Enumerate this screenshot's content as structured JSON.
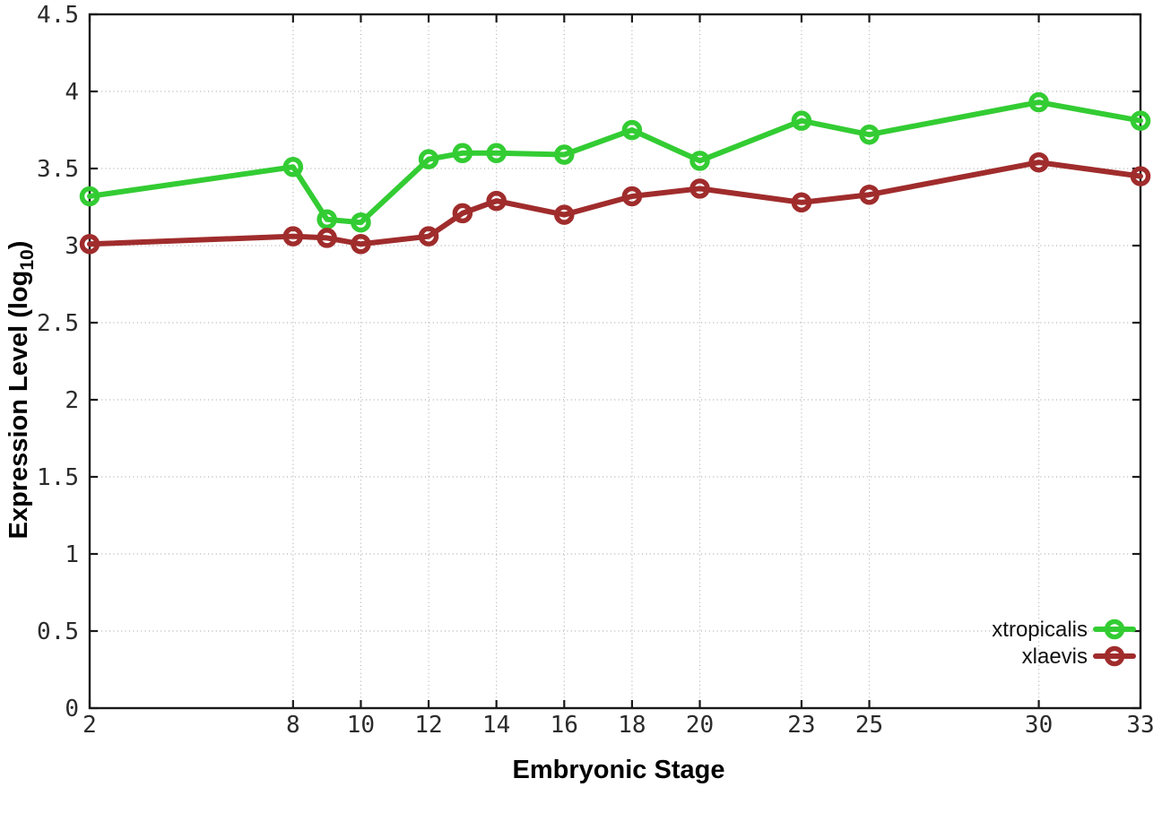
{
  "figure": {
    "background": "#ffffff"
  },
  "chart_data": {
    "type": "line",
    "title": "",
    "xlabel": "Embryonic Stage",
    "ylabel": "Expression Level (log10)",
    "ylabel_parts": {
      "main": "Expression Level (log",
      "sub": "10",
      "close": ")"
    },
    "xlim": [
      2,
      33
    ],
    "ylim": [
      0,
      4.5
    ],
    "grid": true,
    "grid_style": "dotted",
    "legend_position": "bottom-right",
    "axis_color": "#1a1a1a",
    "grid_color": "#b0b0b0",
    "tick_label_color": "#2b2b2b",
    "x_ticks": [
      2,
      8,
      10,
      12,
      14,
      16,
      18,
      20,
      23,
      25,
      30,
      33
    ],
    "x_tick_labels": [
      "2",
      "8",
      "10",
      "12",
      "14",
      "16",
      "18",
      "20",
      "23",
      "25",
      "30",
      "33"
    ],
    "y_ticks": [
      0,
      0.5,
      1,
      1.5,
      2,
      2.5,
      3,
      3.5,
      4,
      4.5
    ],
    "y_tick_labels": [
      "0",
      "0.5",
      "1",
      "1.5",
      "2",
      "2.5",
      "3",
      "3.5",
      "4",
      "4.5"
    ],
    "series": [
      {
        "name": "xtropicalis",
        "color": "#33cc33",
        "marker": "open-circle",
        "x": [
          2,
          8,
          9,
          10,
          12,
          13,
          14,
          16,
          18,
          20,
          23,
          25,
          30,
          33
        ],
        "y": [
          3.32,
          3.51,
          3.17,
          3.15,
          3.56,
          3.6,
          3.6,
          3.59,
          3.75,
          3.55,
          3.81,
          3.72,
          3.93,
          3.81
        ]
      },
      {
        "name": "xlaevis",
        "color": "#a02c2c",
        "marker": "open-circle",
        "x": [
          2,
          8,
          9,
          10,
          12,
          13,
          14,
          16,
          18,
          20,
          23,
          25,
          30,
          33
        ],
        "y": [
          3.01,
          3.06,
          3.05,
          3.01,
          3.06,
          3.21,
          3.29,
          3.2,
          3.32,
          3.37,
          3.28,
          3.33,
          3.54,
          3.45
        ]
      }
    ]
  }
}
